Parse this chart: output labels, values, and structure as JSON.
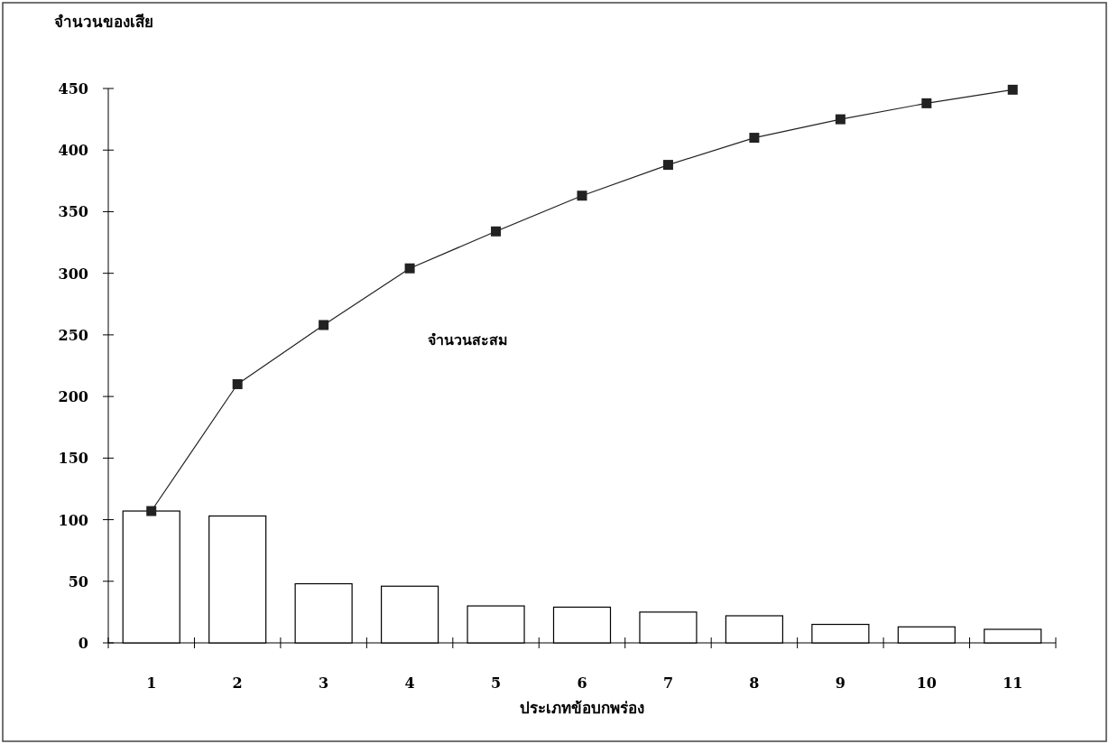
{
  "chart_data": {
    "type": "bar",
    "xlabel": "ประเภทข้อบกพร่อง",
    "ylabel": "จำนวนของเสีย",
    "categories": [
      "1",
      "2",
      "3",
      "4",
      "5",
      "6",
      "7",
      "8",
      "9",
      "10",
      "11"
    ],
    "series": [
      {
        "color": "#ffffff",
        "values": [
          107,
          103,
          48,
          46,
          30,
          29,
          25,
          22,
          15,
          13,
          11
        ]
      },
      {
        "type": "line",
        "name": "จำนวนสะสม",
        "color": "#222222",
        "marker": "square",
        "values": [
          107,
          210,
          258,
          304,
          334,
          363,
          388,
          410,
          425,
          438,
          449
        ]
      }
    ],
    "ylim": [
      0,
      450
    ],
    "yticks": [
      0,
      50,
      100,
      150,
      200,
      250,
      300,
      350,
      400,
      450
    ],
    "grid": false
  }
}
